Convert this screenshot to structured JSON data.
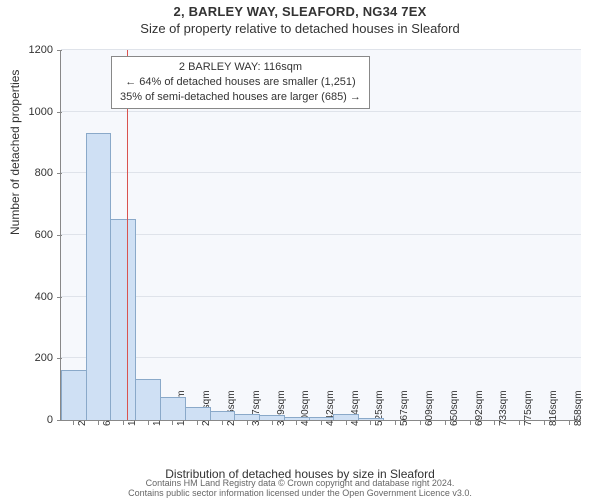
{
  "title": "2, BARLEY WAY, SLEAFORD, NG34 7EX",
  "subtitle": "Size of property relative to detached houses in Sleaford",
  "yaxis_label": "Number of detached properties",
  "xaxis_label": "Distribution of detached houses by size in Sleaford",
  "chart": {
    "type": "histogram",
    "background_color": "#f6f8fc",
    "grid_color": "#dfe3ea",
    "bar_fill": "#cfe0f4",
    "bar_stroke": "#8aa9c9",
    "ylim": [
      0,
      1200
    ],
    "yticks": [
      0,
      200,
      400,
      600,
      800,
      1000,
      1200
    ],
    "xmin": 5,
    "xmax": 879,
    "xticks": [
      26,
      68,
      109,
      151,
      192,
      234,
      276,
      317,
      359,
      400,
      442,
      484,
      525,
      567,
      609,
      650,
      692,
      733,
      775,
      816,
      858
    ],
    "xtick_suffix": "sqm",
    "bins": [
      {
        "start": 5,
        "end": 47,
        "count": 160
      },
      {
        "start": 47,
        "end": 88,
        "count": 928
      },
      {
        "start": 88,
        "end": 130,
        "count": 650
      },
      {
        "start": 130,
        "end": 172,
        "count": 130
      },
      {
        "start": 172,
        "end": 213,
        "count": 70
      },
      {
        "start": 213,
        "end": 255,
        "count": 40
      },
      {
        "start": 255,
        "end": 296,
        "count": 25
      },
      {
        "start": 296,
        "end": 338,
        "count": 15
      },
      {
        "start": 338,
        "end": 380,
        "count": 12
      },
      {
        "start": 380,
        "end": 421,
        "count": 8
      },
      {
        "start": 421,
        "end": 463,
        "count": 5
      },
      {
        "start": 463,
        "end": 504,
        "count": 15
      },
      {
        "start": 504,
        "end": 546,
        "count": 2
      },
      {
        "start": 546,
        "end": 588,
        "count": 0
      },
      {
        "start": 588,
        "end": 629,
        "count": 0
      },
      {
        "start": 629,
        "end": 671,
        "count": 0
      },
      {
        "start": 671,
        "end": 713,
        "count": 0
      },
      {
        "start": 713,
        "end": 754,
        "count": 0
      },
      {
        "start": 754,
        "end": 796,
        "count": 0
      },
      {
        "start": 796,
        "end": 837,
        "count": 0
      },
      {
        "start": 837,
        "end": 879,
        "count": 0
      }
    ],
    "marker": {
      "x": 116,
      "color": "#d9534f",
      "width": 1
    }
  },
  "annotation": {
    "line1": "2 BARLEY WAY: 116sqm",
    "line2": "← 64% of detached houses are smaller (1,251)",
    "line3": "35% of semi-detached houses are larger (685) →"
  },
  "footer": {
    "line1": "Contains HM Land Registry data © Crown copyright and database right 2024.",
    "line2": "Contains public sector information licensed under the Open Government Licence v3.0."
  }
}
